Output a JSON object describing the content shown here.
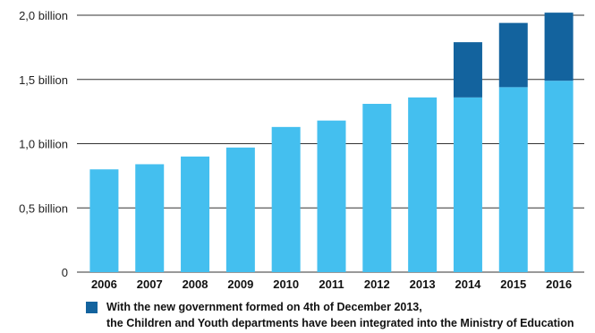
{
  "chart_data": {
    "type": "bar",
    "stacked": true,
    "categories": [
      "2006",
      "2007",
      "2008",
      "2009",
      "2010",
      "2011",
      "2012",
      "2013",
      "2014",
      "2015",
      "2016"
    ],
    "series": [
      {
        "values": [
          0.8,
          0.84,
          0.9,
          0.97,
          1.13,
          1.18,
          1.31,
          1.36,
          1.36,
          1.44,
          1.49
        ],
        "color": "#44bfef"
      },
      {
        "name": "With the new government formed on 4th of December 2013, the Children and Youth departments have been integrated into the Ministry of Education",
        "values": [
          0,
          0,
          0,
          0,
          0,
          0,
          0,
          0,
          0.43,
          0.5,
          0.53
        ],
        "color": "#13639e"
      }
    ],
    "yticks": [
      {
        "value": 0,
        "label": "0"
      },
      {
        "value": 0.5,
        "label": "0,5 billion"
      },
      {
        "value": 1.0,
        "label": "1,0 billion"
      },
      {
        "value": 1.5,
        "label": "1,5 billion"
      },
      {
        "value": 2.0,
        "label": "2,0 billion"
      }
    ],
    "ylim": [
      0,
      2.0
    ],
    "grid": true,
    "legend_position": "bottom"
  },
  "legend": {
    "line1": "With the new government formed on 4th of December 2013,",
    "line2": "the Children and Youth departments have been integrated into the Ministry of Education"
  }
}
